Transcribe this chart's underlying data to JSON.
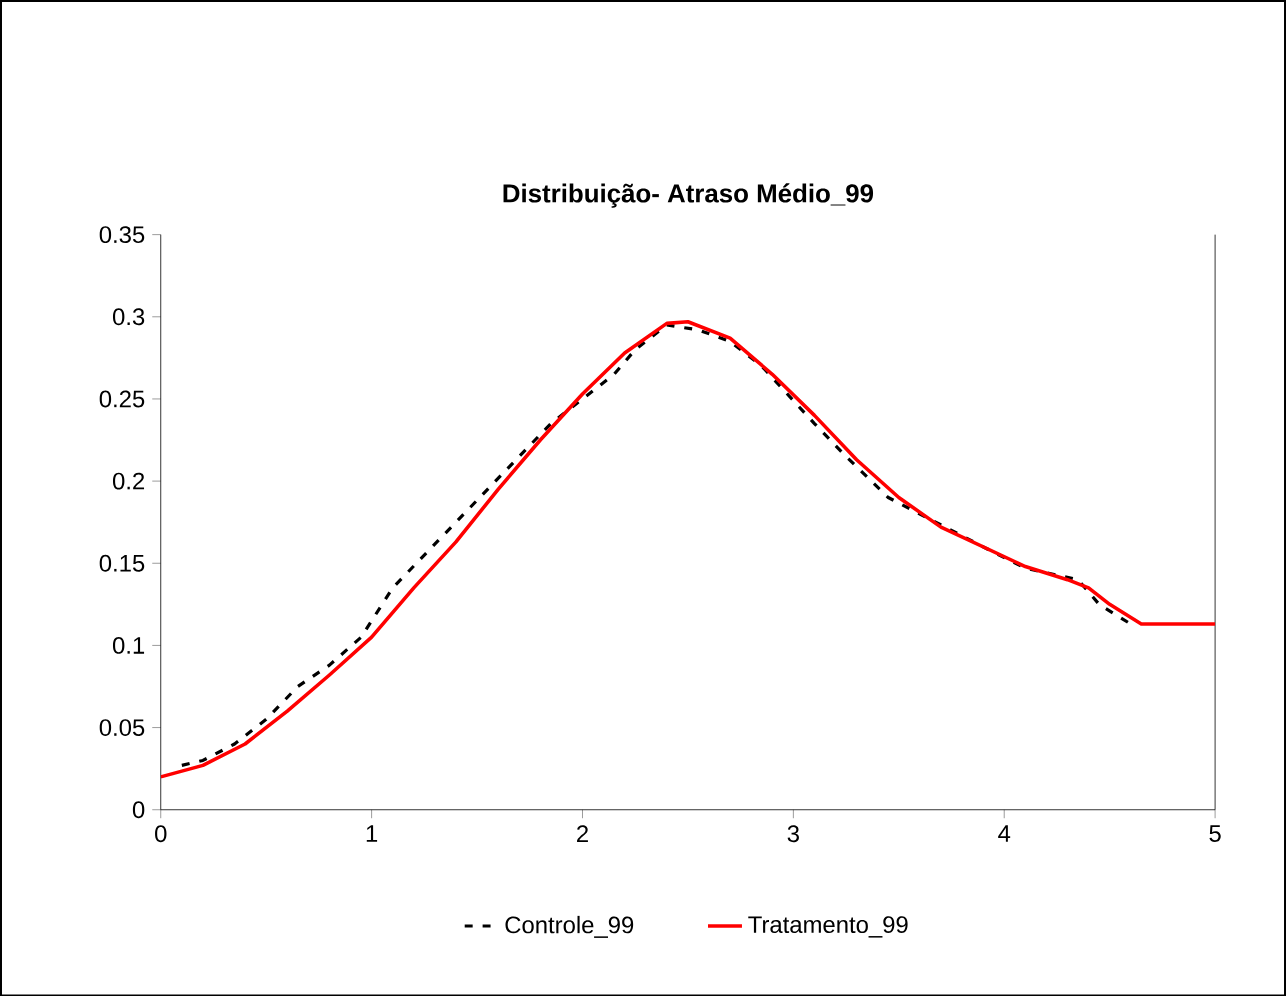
{
  "chart_data": {
    "type": "line",
    "title": "Distribuição- Atraso Médio_99",
    "xlim": [
      0,
      5
    ],
    "ylim": [
      0,
      0.35
    ],
    "xticks": [
      0,
      1,
      2,
      3,
      4,
      5
    ],
    "yticks": [
      0,
      0.05,
      0.1,
      0.15,
      0.2,
      0.25,
      0.3,
      0.35
    ],
    "grid": false,
    "legend": "bottom",
    "series": [
      {
        "name": "Controle_99",
        "color": "#000000",
        "line_style": "dashed",
        "x": [
          0.1,
          0.2,
          0.35,
          0.5,
          0.65,
          0.8,
          0.95,
          1.1,
          1.25,
          1.4,
          1.55,
          1.7,
          1.85,
          2.0,
          2.15,
          2.25,
          2.4,
          2.55,
          2.7,
          2.85,
          3.1,
          3.25,
          3.45,
          3.6,
          3.75,
          3.9,
          4.1,
          4.35,
          4.45,
          4.6
        ],
        "values": [
          0.027,
          0.03,
          0.04,
          0.055,
          0.075,
          0.088,
          0.105,
          0.135,
          0.155,
          0.175,
          0.195,
          0.215,
          0.235,
          0.25,
          0.265,
          0.28,
          0.295,
          0.292,
          0.285,
          0.27,
          0.235,
          0.215,
          0.19,
          0.18,
          0.17,
          0.16,
          0.147,
          0.14,
          0.125,
          0.113
        ]
      },
      {
        "name": "Tratamento_99",
        "color": "#ff0000",
        "line_style": "solid",
        "x": [
          0,
          0.2,
          0.4,
          0.6,
          0.8,
          1.0,
          1.2,
          1.4,
          1.6,
          1.8,
          2.0,
          2.2,
          2.4,
          2.5,
          2.7,
          2.9,
          3.1,
          3.3,
          3.5,
          3.7,
          3.9,
          4.1,
          4.3,
          4.4,
          4.5,
          4.65,
          5.0
        ],
        "values": [
          0.02,
          0.027,
          0.04,
          0.06,
          0.082,
          0.105,
          0.135,
          0.163,
          0.195,
          0.225,
          0.253,
          0.278,
          0.296,
          0.297,
          0.287,
          0.265,
          0.24,
          0.213,
          0.19,
          0.172,
          0.16,
          0.148,
          0.14,
          0.135,
          0.125,
          0.113,
          0.113
        ]
      }
    ]
  }
}
